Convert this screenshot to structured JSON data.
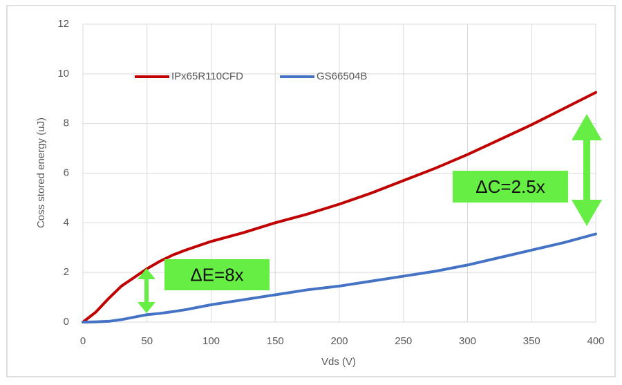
{
  "chart_data": {
    "type": "line",
    "x_label": "Vds (V)",
    "y_label": "Coss stored energy (uJ)",
    "x": [
      0,
      10,
      20,
      30,
      40,
      50,
      60,
      70,
      80,
      100,
      125,
      150,
      175,
      200,
      225,
      250,
      275,
      300,
      325,
      350,
      375,
      400
    ],
    "series": [
      {
        "name": "IPx65R110CFD",
        "color": "#c00000",
        "values": [
          0,
          0.4,
          0.95,
          1.45,
          1.8,
          2.15,
          2.45,
          2.7,
          2.9,
          3.25,
          3.6,
          4.0,
          4.35,
          4.75,
          5.2,
          5.7,
          6.2,
          6.75,
          7.35,
          7.95,
          8.6,
          9.25
        ]
      },
      {
        "name": "GS66504B",
        "color": "#4472c4",
        "values": [
          0,
          0.01,
          0.03,
          0.1,
          0.2,
          0.3,
          0.35,
          0.42,
          0.5,
          0.7,
          0.9,
          1.1,
          1.3,
          1.45,
          1.65,
          1.85,
          2.05,
          2.3,
          2.6,
          2.9,
          3.2,
          3.55
        ]
      }
    ],
    "xlim": [
      0,
      400
    ],
    "xticks": [
      0,
      50,
      100,
      150,
      200,
      250,
      300,
      350,
      400
    ],
    "ylim": [
      0,
      12
    ],
    "yticks": [
      0,
      2,
      4,
      6,
      8,
      10,
      12
    ],
    "grid": true,
    "legend": "top-left",
    "annotations": [
      {
        "text": "ΔE=8x"
      },
      {
        "text": "ΔC=2.5x"
      }
    ]
  }
}
